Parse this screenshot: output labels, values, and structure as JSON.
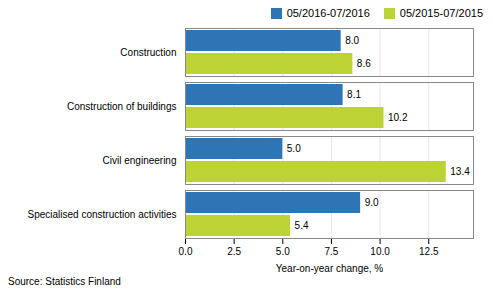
{
  "chart_data": {
    "type": "bar",
    "orientation": "horizontal",
    "categories": [
      "Construction",
      "Construction of buildings",
      "Civil engineering",
      "Specialised construction activities"
    ],
    "series": [
      {
        "name": "05/2016-07/2016",
        "color": "#2e75b6",
        "values": [
          8.0,
          8.1,
          5.0,
          9.0
        ],
        "value_labels": [
          "8.0",
          "8.1",
          "5.0",
          "9.0"
        ]
      },
      {
        "name": "05/2015-07/2015",
        "color": "#bdd335",
        "values": [
          8.6,
          10.2,
          13.4,
          5.4
        ],
        "value_labels": [
          "8.6",
          "10.2",
          "13.4",
          "5.4"
        ]
      }
    ],
    "xlabel": "Year-on-year change, %",
    "xlim": [
      0,
      14.8
    ],
    "xticks": [
      {
        "value": 0.0,
        "label": "0.0"
      },
      2.5,
      {
        "value": 5.0,
        "label": "5.0"
      },
      7.5,
      {
        "value": 10.0,
        "label": "10.0"
      },
      12.5
    ],
    "grid": true,
    "data_labels": true,
    "legend": "upper right",
    "source": "Source: Statistics Finland"
  }
}
